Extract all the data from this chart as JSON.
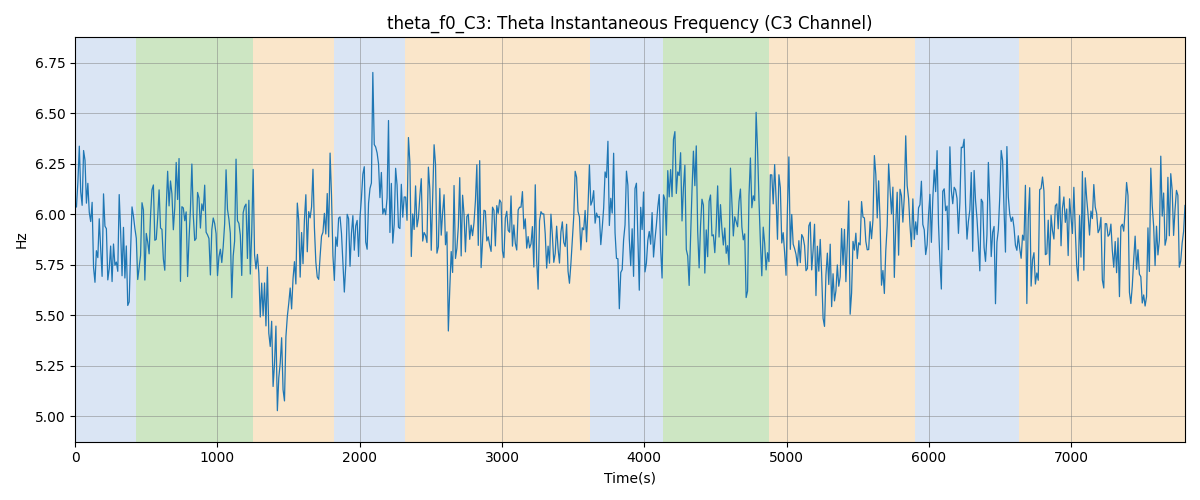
{
  "title": "theta_f0_C3: Theta Instantaneous Frequency (C3 Channel)",
  "xlabel": "Time(s)",
  "ylabel": "Hz",
  "xlim": [
    0,
    7800
  ],
  "ylim": [
    4.875,
    6.875
  ],
  "yticks": [
    5.0,
    5.25,
    5.5,
    5.75,
    6.0,
    6.25,
    6.5,
    6.75
  ],
  "xticks": [
    0,
    1000,
    2000,
    3000,
    4000,
    5000,
    6000,
    7000
  ],
  "line_color": "#1f77b4",
  "line_width": 0.9,
  "figsize": [
    12,
    5
  ],
  "dpi": 100,
  "grid": true,
  "background_bands": [
    {
      "xmin": 0,
      "xmax": 430,
      "color": "#aec6e8",
      "alpha": 0.45
    },
    {
      "xmin": 430,
      "xmax": 1250,
      "color": "#90c97a",
      "alpha": 0.45
    },
    {
      "xmin": 1250,
      "xmax": 1820,
      "color": "#f5c88a",
      "alpha": 0.45
    },
    {
      "xmin": 1820,
      "xmax": 2320,
      "color": "#aec6e8",
      "alpha": 0.45
    },
    {
      "xmin": 2320,
      "xmax": 3620,
      "color": "#f5c88a",
      "alpha": 0.45
    },
    {
      "xmin": 3620,
      "xmax": 4130,
      "color": "#aec6e8",
      "alpha": 0.45
    },
    {
      "xmin": 4130,
      "xmax": 4880,
      "color": "#90c97a",
      "alpha": 0.45
    },
    {
      "xmin": 4880,
      "xmax": 5900,
      "color": "#f5c88a",
      "alpha": 0.45
    },
    {
      "xmin": 5900,
      "xmax": 6630,
      "color": "#aec6e8",
      "alpha": 0.45
    },
    {
      "xmin": 6630,
      "xmax": 7800,
      "color": "#f5c88a",
      "alpha": 0.45
    }
  ],
  "seed": 42,
  "n_points": 780,
  "base_freq": 5.95,
  "noise_std": 0.16
}
